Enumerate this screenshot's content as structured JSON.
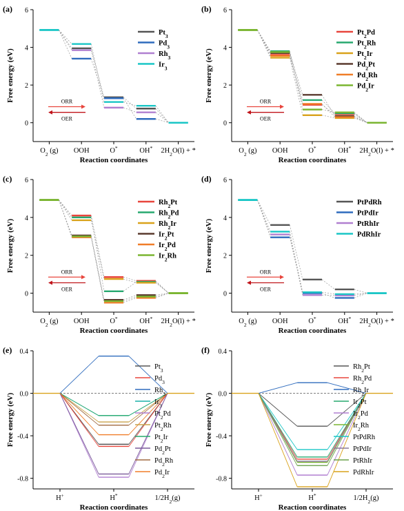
{
  "chart_data": [
    {
      "type": "line",
      "panel_label": "(a)",
      "ylabel": "Free energy (eV)",
      "xlabel": "Reaction coordinates",
      "categories": [
        "O2 (g)",
        "OOH",
        "O*",
        "OH*",
        "2H2O(l) + *"
      ],
      "ylim": [
        -1,
        6
      ],
      "yticks": [
        0,
        2,
        4,
        6
      ],
      "start_value": 4.92,
      "end_value": 0,
      "annotations": [
        "ORR",
        "OER"
      ],
      "legend_position": "top-right",
      "series": [
        {
          "name": "Pt3",
          "color": "#555555",
          "values": [
            4.92,
            3.95,
            1.35,
            0.75,
            0
          ]
        },
        {
          "name": "Pd3",
          "color": "#2e6bbd",
          "values": [
            4.92,
            3.4,
            1.3,
            0.2,
            0
          ]
        },
        {
          "name": "Rh3",
          "color": "#b07fd0",
          "values": [
            4.92,
            3.85,
            0.8,
            0.55,
            0
          ]
        },
        {
          "name": "Ir3",
          "color": "#19c6c6",
          "values": [
            4.92,
            4.18,
            1.1,
            0.9,
            0
          ]
        }
      ]
    },
    {
      "type": "line",
      "panel_label": "(b)",
      "ylabel": "Free energy (eV)",
      "xlabel": "Reaction coordinates",
      "categories": [
        "O2 (g)",
        "OOH",
        "O*",
        "OH*",
        "2H2O(l) + *"
      ],
      "ylim": [
        -1,
        6
      ],
      "yticks": [
        0,
        2,
        4,
        6
      ],
      "start_value": 4.92,
      "end_value": 0,
      "annotations": [
        "ORR",
        "OER"
      ],
      "legend_position": "top-right",
      "series": [
        {
          "name": "Pt2Pd",
          "color": "#e8453c",
          "values": [
            4.92,
            3.6,
            0.95,
            0.45,
            0
          ]
        },
        {
          "name": "Pt2Rh",
          "color": "#27a86f",
          "values": [
            4.92,
            3.8,
            1.2,
            0.5,
            0
          ]
        },
        {
          "name": "Pt2Ir",
          "color": "#d9a21a",
          "values": [
            4.92,
            3.45,
            0.4,
            0.25,
            0
          ]
        },
        {
          "name": "Pd2Pt",
          "color": "#5a3a2e",
          "values": [
            4.92,
            3.7,
            1.48,
            0.35,
            0
          ]
        },
        {
          "name": "Pd2Rh",
          "color": "#f07d28",
          "values": [
            4.92,
            3.55,
            1.0,
            0.3,
            0
          ]
        },
        {
          "name": "Pd2Ir",
          "color": "#7ab530",
          "values": [
            4.92,
            3.75,
            0.7,
            0.55,
            0
          ]
        }
      ]
    },
    {
      "type": "line",
      "panel_label": "(c)",
      "ylabel": "Free energy (eV)",
      "xlabel": "Reaction coordinates",
      "categories": [
        "O2 (g)",
        "OOH",
        "O*",
        "OH*",
        "2H2O(l) + *"
      ],
      "ylim": [
        -1,
        6
      ],
      "yticks": [
        0,
        2,
        4,
        6
      ],
      "start_value": 4.92,
      "end_value": 0,
      "annotations": [
        "ORR",
        "OER"
      ],
      "legend_position": "top-right",
      "series": [
        {
          "name": "Rh2Pt",
          "color": "#e8453c",
          "values": [
            4.92,
            4.1,
            0.85,
            0.65,
            0
          ]
        },
        {
          "name": "Rh2Pd",
          "color": "#27a86f",
          "values": [
            4.92,
            4.0,
            0.1,
            0.6,
            0
          ]
        },
        {
          "name": "Rh2Ir",
          "color": "#d9a21a",
          "values": [
            4.92,
            3.85,
            0.75,
            0.55,
            0
          ]
        },
        {
          "name": "Ir2Pt",
          "color": "#5a3a2e",
          "values": [
            4.92,
            3.05,
            -0.35,
            -0.1,
            0
          ]
        },
        {
          "name": "Ir2Pd",
          "color": "#f07d28",
          "values": [
            4.92,
            2.95,
            -0.5,
            -0.25,
            0
          ]
        },
        {
          "name": "Ir2Rh",
          "color": "#7ab530",
          "values": [
            4.92,
            3.0,
            -0.42,
            -0.18,
            0
          ]
        }
      ]
    },
    {
      "type": "line",
      "panel_label": "(d)",
      "ylabel": "Free energy (eV)",
      "xlabel": "Reaction coordinates",
      "categories": [
        "O2 (g)",
        "OOH",
        "O*",
        "OH*",
        "2H2O(l) + *"
      ],
      "ylim": [
        -1,
        6
      ],
      "yticks": [
        0,
        2,
        4,
        6
      ],
      "start_value": 4.92,
      "end_value": 0,
      "annotations": [
        "ORR",
        "OER"
      ],
      "legend_position": "top-right",
      "series": [
        {
          "name": "PtPdRh",
          "color": "#555555",
          "values": [
            4.92,
            3.6,
            0.72,
            0.2,
            0
          ]
        },
        {
          "name": "PtPdIr",
          "color": "#2e6bbd",
          "values": [
            4.92,
            2.95,
            0.0,
            -0.25,
            0
          ]
        },
        {
          "name": "PtRhIr",
          "color": "#b07fd0",
          "values": [
            4.92,
            3.1,
            -0.1,
            -0.12,
            0
          ]
        },
        {
          "name": "PdRhIr",
          "color": "#19c6c6",
          "values": [
            4.92,
            3.25,
            0.05,
            -0.05,
            0
          ]
        }
      ]
    },
    {
      "type": "line",
      "panel_label": "(e)",
      "ylabel": "Free energy (eV)",
      "xlabel": "Reaction coordinates",
      "categories": [
        "H+",
        "H*",
        "1/2H2(g)"
      ],
      "ylim": [
        -0.9,
        0.4
      ],
      "yticks": [
        -0.8,
        -0.4,
        0.0,
        0.4
      ],
      "ytick_labels": [
        "-0.8",
        "-0.4",
        "0.0",
        "0.4"
      ],
      "legend_position": "top-right",
      "series": [
        {
          "name": "Pt3",
          "color": "#555555",
          "values": [
            0,
            -0.48,
            0
          ]
        },
        {
          "name": "Pd3",
          "color": "#e8453c",
          "values": [
            0,
            -0.5,
            0
          ]
        },
        {
          "name": "Rh3",
          "color": "#2e6bbd",
          "values": [
            0,
            0.35,
            0
          ]
        },
        {
          "name": "Ir3",
          "color": "#19b0a8",
          "values": [
            0,
            -0.21,
            0
          ]
        },
        {
          "name": "Pt2Pd",
          "color": "#b07fd0",
          "values": [
            0,
            -0.79,
            0
          ]
        },
        {
          "name": "Pt2Rh",
          "color": "#c9a24a",
          "values": [
            0,
            -0.27,
            0
          ]
        },
        {
          "name": "Pt2Ir",
          "color": "#27a86f",
          "values": [
            0,
            -0.21,
            0
          ]
        },
        {
          "name": "Pd2Pt",
          "color": "#7a5a9a",
          "values": [
            0,
            -0.76,
            0
          ]
        },
        {
          "name": "Pd2Rh",
          "color": "#a06a40",
          "values": [
            0,
            -0.3,
            0
          ]
        },
        {
          "name": "Pd2Ir",
          "color": "#f07d28",
          "values": [
            0,
            -0.39,
            0
          ]
        }
      ],
      "reference_line": 0
    },
    {
      "type": "line",
      "panel_label": "(f)",
      "ylabel": "Free energy (eV)",
      "xlabel": "Reaction coordinates",
      "categories": [
        "H+",
        "H*",
        "1/2H2(g)"
      ],
      "ylim": [
        -0.9,
        0.4
      ],
      "yticks": [
        -0.8,
        -0.4,
        0.0,
        0.4
      ],
      "ytick_labels": [
        "-0.8",
        "-0.4",
        "0.0",
        "0.4"
      ],
      "legend_position": "top-right",
      "series": [
        {
          "name": "Rh2Pt",
          "color": "#555555",
          "values": [
            0,
            -0.31,
            0
          ]
        },
        {
          "name": "Rh2Pd",
          "color": "#e8453c",
          "values": [
            0,
            -0.62,
            0
          ]
        },
        {
          "name": "Rh2Ir",
          "color": "#2e6bbd",
          "values": [
            0,
            0.1,
            0
          ]
        },
        {
          "name": "Ir2Pt",
          "color": "#27a86f",
          "values": [
            0,
            -0.6,
            0
          ]
        },
        {
          "name": "Ir2Pd",
          "color": "#b07fd0",
          "values": [
            0,
            -0.77,
            0
          ]
        },
        {
          "name": "Ir2Rh",
          "color": "#7ab530",
          "values": [
            0,
            -0.65,
            0
          ]
        },
        {
          "name": "PtPdRh",
          "color": "#19c6c6",
          "values": [
            0,
            -0.53,
            0
          ]
        },
        {
          "name": "PtPdIr",
          "color": "#8a7a99",
          "values": [
            0,
            -0.64,
            0
          ]
        },
        {
          "name": "PtRhIr",
          "color": "#6aa04a",
          "values": [
            0,
            -0.68,
            0
          ]
        },
        {
          "name": "PdRhIr",
          "color": "#d9a21a",
          "values": [
            0,
            -0.88,
            0
          ]
        }
      ],
      "reference_line": 0
    }
  ]
}
